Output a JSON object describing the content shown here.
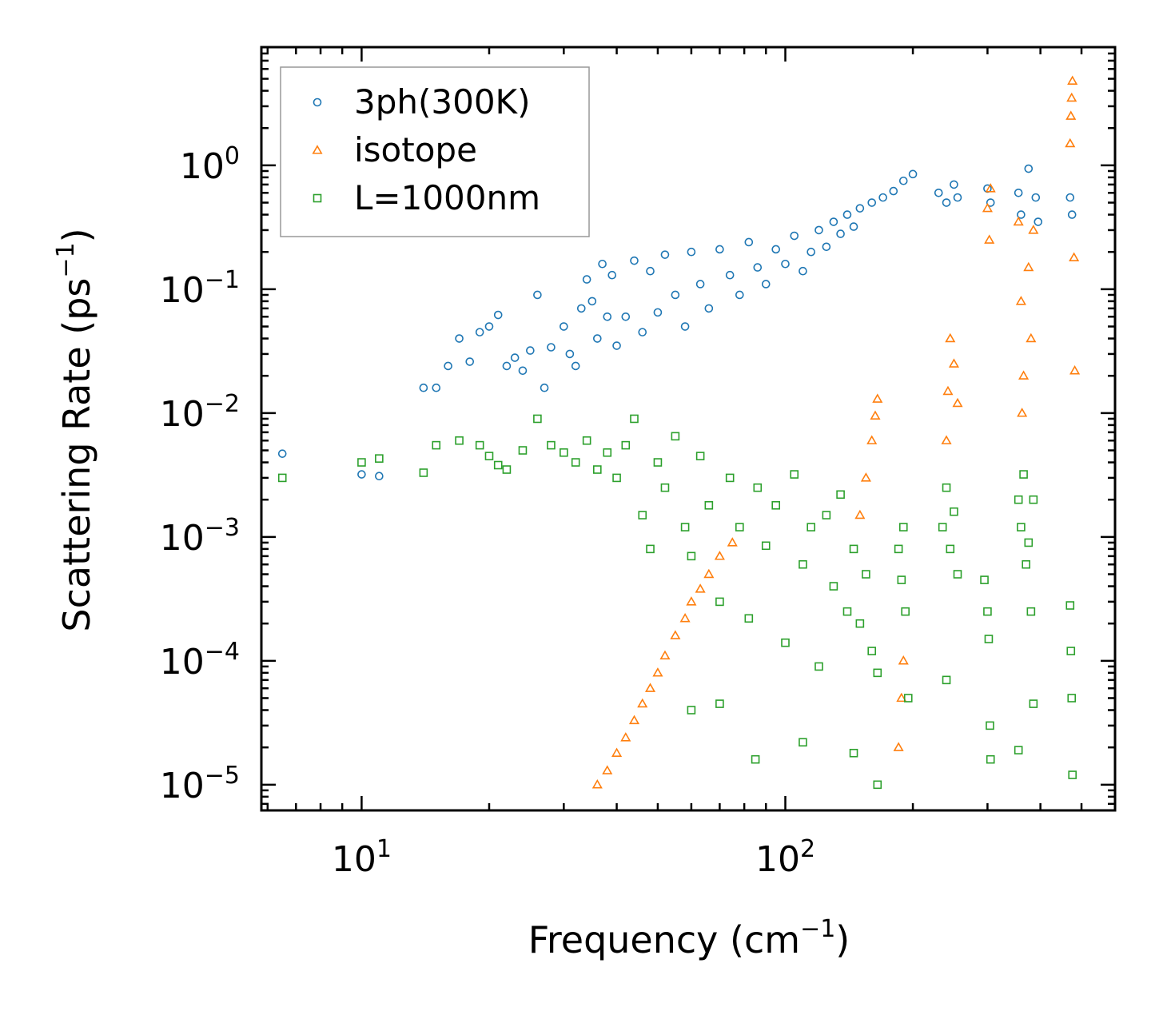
{
  "chart_data": {
    "type": "scatter",
    "title": "",
    "xlabel": "Frequency (cm",
    "xlabel_sup": "−1",
    "xlabel_suffix": ")",
    "ylabel": "Scattering Rate (ps",
    "ylabel_sup": "−1",
    "ylabel_suffix": ")",
    "xscale": "log",
    "yscale": "log",
    "xlim": [
      5.8,
      600
    ],
    "ylim": [
      6.2e-06,
      9
    ],
    "xticks": [
      {
        "value": 10,
        "base": "10",
        "exp": "1"
      },
      {
        "value": 100,
        "base": "10",
        "exp": "2"
      }
    ],
    "yticks": [
      {
        "value": 1,
        "base": "10",
        "exp": "0"
      },
      {
        "value": 0.1,
        "base": "10",
        "exp": "−1"
      },
      {
        "value": 0.01,
        "base": "10",
        "exp": "−2"
      },
      {
        "value": 0.001,
        "base": "10",
        "exp": "−3"
      },
      {
        "value": 0.0001,
        "base": "10",
        "exp": "−4"
      },
      {
        "value": 1e-05,
        "base": "10",
        "exp": "−5"
      }
    ],
    "legend_position": "top-left",
    "series": [
      {
        "name": "3ph(300K)",
        "marker": "circle",
        "color": "#1f77b4",
        "points": [
          [
            6.5,
            0.0047
          ],
          [
            10,
            0.0032
          ],
          [
            11,
            0.0031
          ],
          [
            14,
            0.016
          ],
          [
            15,
            0.016
          ],
          [
            16,
            0.024
          ],
          [
            17,
            0.04
          ],
          [
            18,
            0.026
          ],
          [
            19,
            0.045
          ],
          [
            20,
            0.05
          ],
          [
            21,
            0.062
          ],
          [
            22,
            0.024
          ],
          [
            23,
            0.028
          ],
          [
            24,
            0.022
          ],
          [
            25,
            0.032
          ],
          [
            26,
            0.09
          ],
          [
            27,
            0.016
          ],
          [
            28,
            0.034
          ],
          [
            30,
            0.05
          ],
          [
            31,
            0.03
          ],
          [
            32,
            0.024
          ],
          [
            33,
            0.07
          ],
          [
            34,
            0.12
          ],
          [
            35,
            0.08
          ],
          [
            36,
            0.04
          ],
          [
            37,
            0.16
          ],
          [
            38,
            0.06
          ],
          [
            39,
            0.13
          ],
          [
            40,
            0.035
          ],
          [
            42,
            0.06
          ],
          [
            44,
            0.17
          ],
          [
            46,
            0.045
          ],
          [
            48,
            0.14
          ],
          [
            50,
            0.065
          ],
          [
            52,
            0.19
          ],
          [
            55,
            0.09
          ],
          [
            58,
            0.05
          ],
          [
            60,
            0.2
          ],
          [
            63,
            0.11
          ],
          [
            66,
            0.07
          ],
          [
            70,
            0.21
          ],
          [
            74,
            0.13
          ],
          [
            78,
            0.09
          ],
          [
            82,
            0.24
          ],
          [
            86,
            0.15
          ],
          [
            90,
            0.11
          ],
          [
            95,
            0.21
          ],
          [
            100,
            0.16
          ],
          [
            105,
            0.27
          ],
          [
            110,
            0.14
          ],
          [
            115,
            0.2
          ],
          [
            120,
            0.3
          ],
          [
            125,
            0.22
          ],
          [
            130,
            0.35
          ],
          [
            135,
            0.28
          ],
          [
            140,
            0.4
          ],
          [
            145,
            0.32
          ],
          [
            150,
            0.45
          ],
          [
            160,
            0.5
          ],
          [
            170,
            0.55
          ],
          [
            180,
            0.62
          ],
          [
            190,
            0.75
          ],
          [
            200,
            0.85
          ],
          [
            230,
            0.6
          ],
          [
            240,
            0.5
          ],
          [
            250,
            0.7
          ],
          [
            255,
            0.55
          ],
          [
            300,
            0.65
          ],
          [
            305,
            0.5
          ],
          [
            355,
            0.6
          ],
          [
            360,
            0.4
          ],
          [
            375,
            0.94
          ],
          [
            390,
            0.55
          ],
          [
            395,
            0.35
          ],
          [
            470,
            0.55
          ],
          [
            475,
            0.4
          ]
        ]
      },
      {
        "name": "isotope",
        "marker": "triangle",
        "color": "#ff7f0e",
        "points": [
          [
            36,
            1e-05
          ],
          [
            38,
            1.3e-05
          ],
          [
            40,
            1.8e-05
          ],
          [
            42,
            2.4e-05
          ],
          [
            44,
            3.3e-05
          ],
          [
            46,
            4.5e-05
          ],
          [
            48,
            6e-05
          ],
          [
            50,
            8e-05
          ],
          [
            52,
            0.00011
          ],
          [
            55,
            0.00016
          ],
          [
            58,
            0.00022
          ],
          [
            60,
            0.0003
          ],
          [
            63,
            0.00038
          ],
          [
            66,
            0.0005
          ],
          [
            70,
            0.0007
          ],
          [
            75,
            0.0009
          ],
          [
            150,
            0.0015
          ],
          [
            155,
            0.003
          ],
          [
            160,
            0.006
          ],
          [
            163,
            0.0095
          ],
          [
            165,
            0.013
          ],
          [
            185,
            2e-05
          ],
          [
            188,
            5e-05
          ],
          [
            190,
            0.0001
          ],
          [
            240,
            0.006
          ],
          [
            242,
            0.015
          ],
          [
            245,
            0.04
          ],
          [
            250,
            0.025
          ],
          [
            255,
            0.012
          ],
          [
            300,
            0.45
          ],
          [
            303,
            0.25
          ],
          [
            305,
            0.65
          ],
          [
            355,
            0.35
          ],
          [
            360,
            0.08
          ],
          [
            362,
            0.01
          ],
          [
            365,
            0.02
          ],
          [
            375,
            0.15
          ],
          [
            380,
            0.04
          ],
          [
            385,
            0.3
          ],
          [
            470,
            1.5
          ],
          [
            472,
            2.5
          ],
          [
            474,
            3.5
          ],
          [
            476,
            4.8
          ],
          [
            480,
            0.18
          ],
          [
            482,
            0.022
          ]
        ]
      },
      {
        "name": "L=1000nm",
        "marker": "square",
        "color": "#2ca02c",
        "points": [
          [
            6.5,
            0.003
          ],
          [
            10,
            0.004
          ],
          [
            11,
            0.0043
          ],
          [
            14,
            0.0033
          ],
          [
            15,
            0.0055
          ],
          [
            17,
            0.006
          ],
          [
            19,
            0.0055
          ],
          [
            20,
            0.0045
          ],
          [
            21,
            0.0038
          ],
          [
            22,
            0.0035
          ],
          [
            24,
            0.005
          ],
          [
            26,
            0.009
          ],
          [
            28,
            0.0055
          ],
          [
            30,
            0.0048
          ],
          [
            32,
            0.004
          ],
          [
            34,
            0.006
          ],
          [
            36,
            0.0035
          ],
          [
            38,
            0.0048
          ],
          [
            40,
            0.003
          ],
          [
            42,
            0.0055
          ],
          [
            44,
            0.009
          ],
          [
            46,
            0.0015
          ],
          [
            48,
            0.0008
          ],
          [
            50,
            0.004
          ],
          [
            52,
            0.0025
          ],
          [
            55,
            0.0065
          ],
          [
            58,
            0.0012
          ],
          [
            60,
            0.0007
          ],
          [
            63,
            0.0045
          ],
          [
            66,
            0.0018
          ],
          [
            70,
            0.0003
          ],
          [
            74,
            0.003
          ],
          [
            78,
            0.0012
          ],
          [
            82,
            0.00022
          ],
          [
            86,
            0.0025
          ],
          [
            90,
            0.00085
          ],
          [
            95,
            0.0018
          ],
          [
            100,
            0.00014
          ],
          [
            105,
            0.0032
          ],
          [
            110,
            0.0006
          ],
          [
            115,
            0.0012
          ],
          [
            120,
            9e-05
          ],
          [
            125,
            0.0015
          ],
          [
            130,
            0.0004
          ],
          [
            135,
            0.0022
          ],
          [
            140,
            0.00025
          ],
          [
            145,
            0.0008
          ],
          [
            150,
            0.0002
          ],
          [
            155,
            0.0005
          ],
          [
            160,
            0.00012
          ],
          [
            165,
            8e-05
          ],
          [
            70,
            4.5e-05
          ],
          [
            60,
            4e-05
          ],
          [
            85,
            1.6e-05
          ],
          [
            110,
            2.2e-05
          ],
          [
            145,
            1.8e-05
          ],
          [
            165,
            1e-05
          ],
          [
            185,
            0.0008
          ],
          [
            188,
            0.00045
          ],
          [
            190,
            0.0012
          ],
          [
            192,
            0.00025
          ],
          [
            195,
            5e-05
          ],
          [
            235,
            0.0012
          ],
          [
            240,
            0.0025
          ],
          [
            245,
            0.0008
          ],
          [
            250,
            0.0016
          ],
          [
            255,
            0.0005
          ],
          [
            240,
            7e-05
          ],
          [
            295,
            0.00045
          ],
          [
            300,
            0.00025
          ],
          [
            302,
            0.00015
          ],
          [
            304,
            3e-05
          ],
          [
            305,
            1.6e-05
          ],
          [
            355,
            0.002
          ],
          [
            360,
            0.0012
          ],
          [
            365,
            0.0032
          ],
          [
            370,
            0.0006
          ],
          [
            375,
            0.0009
          ],
          [
            380,
            0.00025
          ],
          [
            385,
            0.002
          ],
          [
            355,
            1.9e-05
          ],
          [
            385,
            4.5e-05
          ],
          [
            470,
            0.00028
          ],
          [
            472,
            0.00012
          ],
          [
            474,
            5e-05
          ],
          [
            476,
            1.2e-05
          ]
        ]
      }
    ]
  }
}
